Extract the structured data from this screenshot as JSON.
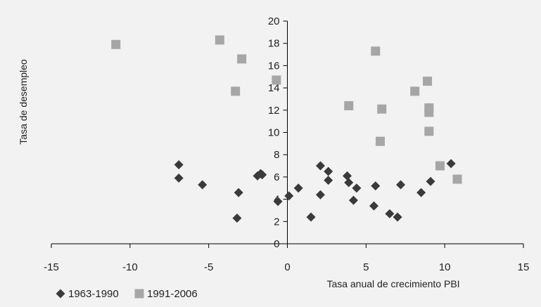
{
  "chart_data": {
    "type": "scatter",
    "title": "",
    "xlabel": "Tasa anual de crecimiento PBI",
    "ylabel": "Tasa de desempleo",
    "xlim": [
      -15,
      15
    ],
    "ylim": [
      0,
      20
    ],
    "xticks": [
      -15,
      -10,
      -5,
      0,
      5,
      10,
      15
    ],
    "yticks": [
      0,
      2,
      4,
      6,
      8,
      10,
      12,
      14,
      16,
      18,
      20
    ],
    "grid": false,
    "legend_position": "bottom-left",
    "series": [
      {
        "name": "1963-1990",
        "marker": "diamond",
        "color": "#3a3a3a",
        "points": [
          [
            -6.9,
            7.1
          ],
          [
            -6.9,
            5.9
          ],
          [
            -5.4,
            5.3
          ],
          [
            -3.1,
            4.6
          ],
          [
            -3.2,
            2.3
          ],
          [
            -1.9,
            6.1
          ],
          [
            -1.7,
            6.3
          ],
          [
            -1.6,
            6.2
          ],
          [
            -0.6,
            3.8
          ],
          [
            0.1,
            4.3
          ],
          [
            0.7,
            5.0
          ],
          [
            1.5,
            2.4
          ],
          [
            2.1,
            7.0
          ],
          [
            2.1,
            4.4
          ],
          [
            2.6,
            6.5
          ],
          [
            2.6,
            5.7
          ],
          [
            3.8,
            6.1
          ],
          [
            3.9,
            5.5
          ],
          [
            4.2,
            3.9
          ],
          [
            4.4,
            5.0
          ],
          [
            5.5,
            3.4
          ],
          [
            5.6,
            5.2
          ],
          [
            6.5,
            2.7
          ],
          [
            7.0,
            2.4
          ],
          [
            7.2,
            5.3
          ],
          [
            8.5,
            4.6
          ],
          [
            9.1,
            5.6
          ],
          [
            10.4,
            7.2
          ]
        ]
      },
      {
        "name": "1991-2006",
        "marker": "square",
        "color": "#a6a6a6",
        "points": [
          [
            -10.9,
            17.9
          ],
          [
            -4.3,
            18.3
          ],
          [
            -2.9,
            16.6
          ],
          [
            -3.3,
            13.7
          ],
          [
            -0.7,
            14.7
          ],
          [
            3.9,
            12.4
          ],
          [
            5.6,
            17.3
          ],
          [
            5.9,
            9.2
          ],
          [
            6.0,
            12.1
          ],
          [
            8.1,
            13.7
          ],
          [
            8.9,
            14.6
          ],
          [
            9.0,
            11.8
          ],
          [
            9.0,
            12.2
          ],
          [
            9.0,
            10.1
          ],
          [
            9.7,
            7.0
          ],
          [
            10.8,
            5.8
          ]
        ]
      }
    ]
  }
}
